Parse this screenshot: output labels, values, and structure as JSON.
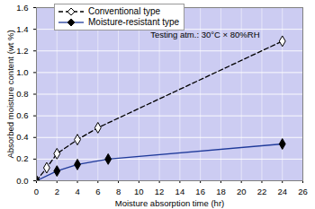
{
  "chart_data": {
    "type": "line",
    "xlabel": "Moisture absorption time (hr)",
    "ylabel": "Absorbed moisture content (wt %)",
    "annotation": "Testing atm.: 30°C × 80%RH",
    "xlim": [
      0,
      26
    ],
    "xticks": [
      0,
      2,
      4,
      6,
      8,
      10,
      12,
      14,
      16,
      18,
      20,
      22,
      24,
      26
    ],
    "ylim": [
      0,
      1.6
    ],
    "yticks": [
      {
        "value": 0,
        "label": "0.0"
      },
      0.2,
      0.4,
      0.6,
      0.8,
      {
        "value": 1,
        "label": "1.0"
      },
      1.2,
      1.4,
      1.6
    ],
    "grid": true,
    "legend": "upper left",
    "series": [
      {
        "name": "Conventional type",
        "color": "#000000",
        "marker": "diamond_open",
        "line_style": "dashed",
        "x": [
          0,
          1,
          2,
          4,
          6,
          24
        ],
        "values": [
          0,
          0.12,
          0.25,
          0.38,
          0.49,
          1.29
        ]
      },
      {
        "name": "Moisture-resistant type",
        "color": "#1f3a9a",
        "marker": "diamond",
        "line_style": "solid",
        "x": [
          0,
          2,
          4,
          7,
          24
        ],
        "values": [
          0,
          0.09,
          0.15,
          0.2,
          0.34
        ]
      }
    ]
  }
}
